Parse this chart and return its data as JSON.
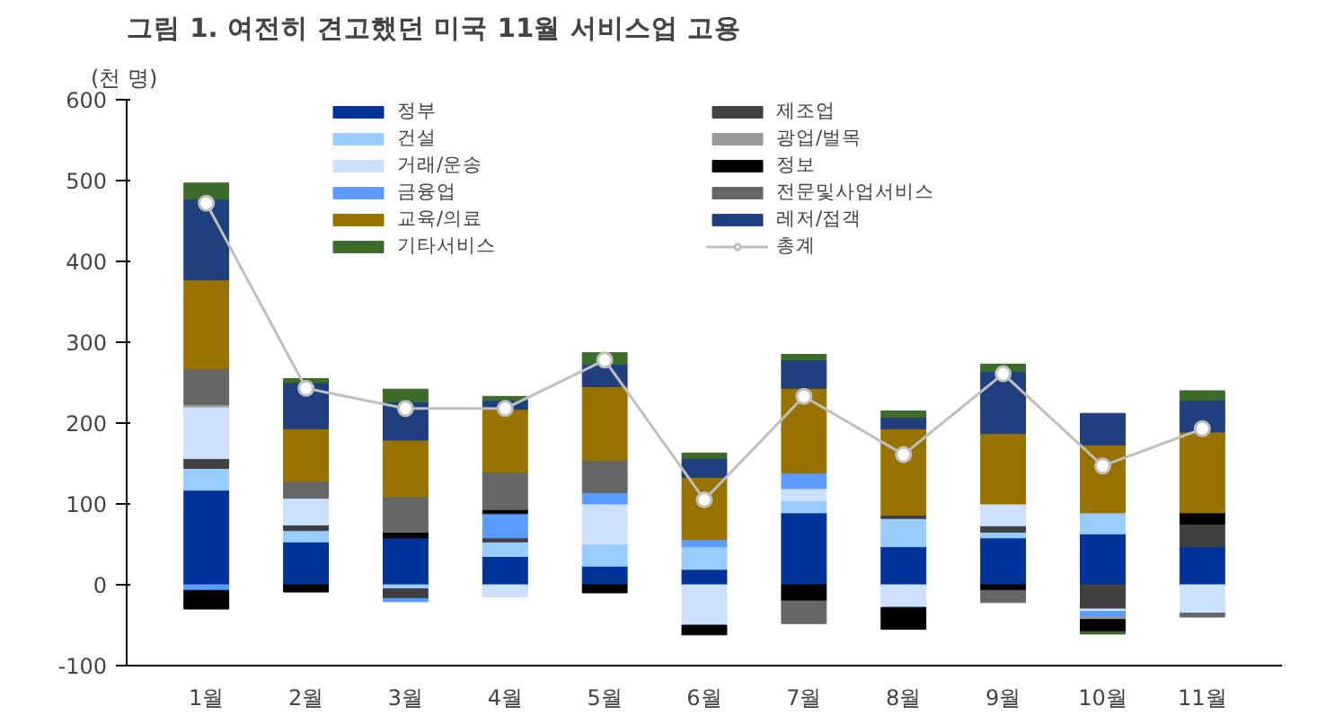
{
  "chart_data": {
    "type": "bar",
    "stacked": true,
    "title": "그림 1. 여전히 견고했던 미국 11월 서비스업 고용",
    "ylabel": "(천 명)",
    "categories": [
      "1월",
      "2월",
      "3월",
      "4월",
      "5월",
      "6월",
      "7월",
      "8월",
      "9월",
      "10월",
      "11월"
    ],
    "ylim": [
      -100,
      600
    ],
    "yticks": [
      -100,
      0,
      100,
      200,
      300,
      400,
      500,
      600
    ],
    "grid": false,
    "legend": "top",
    "series": [
      {
        "name": "정부",
        "color": "#003399",
        "values": [
          117,
          53,
          58,
          35,
          23,
          19,
          89,
          47,
          58,
          63,
          47
        ]
      },
      {
        "name": "건설",
        "color": "#99ccff",
        "values": [
          27,
          14,
          -5,
          18,
          27,
          28,
          15,
          35,
          7,
          26,
          0
        ]
      },
      {
        "name": "제조업",
        "color": "#404040",
        "values": [
          12,
          7,
          -12,
          5,
          0,
          0,
          0,
          4,
          8,
          -30,
          28
        ]
      },
      {
        "name": "거래/운송",
        "color": "#cce0ff",
        "values": [
          64,
          33,
          0,
          -15,
          50,
          -50,
          15,
          -28,
          27,
          -3,
          -35
        ]
      },
      {
        "name": "금융업",
        "color": "#5b9bff",
        "values": [
          -7,
          0,
          -4,
          30,
          14,
          9,
          19,
          0,
          0,
          -7,
          0
        ]
      },
      {
        "name": "광업/벌목",
        "color": "#999999",
        "values": [
          3,
          null,
          null,
          null,
          null,
          null,
          null,
          null,
          null,
          -3,
          null
        ]
      },
      {
        "name": "정보",
        "color": "#000000",
        "values": [
          -23,
          -9,
          7,
          5,
          -10,
          -12,
          -20,
          -27,
          -7,
          -15,
          14
        ]
      },
      {
        "name": "전문및사업서비스",
        "color": "#666666",
        "values": [
          44,
          21,
          44,
          46,
          40,
          0,
          -28,
          0,
          -15,
          0,
          -5
        ]
      },
      {
        "name": "교육/의료",
        "color": "#997300",
        "values": [
          110,
          65,
          70,
          78,
          91,
          77,
          105,
          107,
          87,
          84,
          100
        ]
      },
      {
        "name": "레저/접객",
        "color": "#1f3f7f",
        "values": [
          100,
          57,
          47,
          11,
          28,
          23,
          35,
          14,
          77,
          39,
          39
        ]
      },
      {
        "name": "기타서비스",
        "color": "#3d6b2a",
        "values": [
          20,
          5,
          16,
          5,
          14,
          7,
          7,
          8,
          9,
          -3,
          12
        ]
      },
      {
        "name": "총계",
        "type": "line",
        "color": "#bfbfbf",
        "marker": "circle",
        "values": [
          472,
          243,
          218,
          218,
          278,
          105,
          233,
          161,
          261,
          147,
          193
        ]
      }
    ]
  }
}
